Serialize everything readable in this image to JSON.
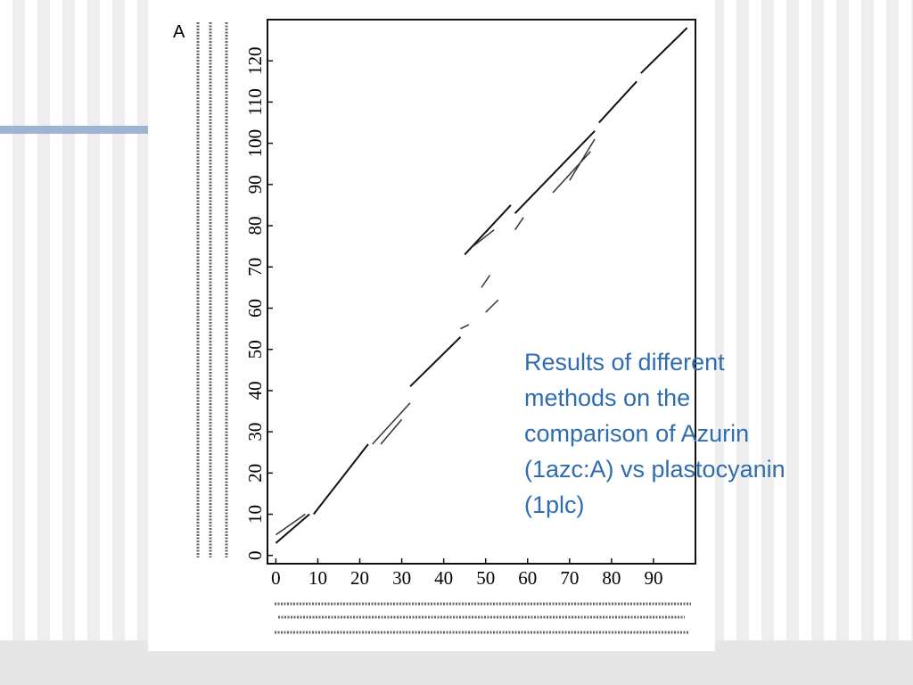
{
  "slide": {
    "caption_lines": [
      "Results of different",
      "methods on the",
      "comparison of Azurin",
      "(1azc:A) vs plastocyanin",
      "(1plc)"
    ]
  },
  "chart_data": {
    "type": "dotplot",
    "panel_label": "A",
    "xlim": [
      -2,
      100
    ],
    "ylim": [
      -2,
      130
    ],
    "xticks": [
      0,
      10,
      20,
      30,
      40,
      50,
      60,
      70,
      80,
      90
    ],
    "yticks": [
      0,
      10,
      20,
      30,
      40,
      50,
      60,
      70,
      80,
      90,
      100,
      110,
      120
    ],
    "series": [
      {
        "color": "#111111",
        "width": 2,
        "x": [
          0,
          8,
          null,
          9,
          22,
          null,
          32,
          44,
          null,
          45,
          56,
          null,
          57,
          76,
          null,
          77,
          86,
          null,
          87,
          98
        ],
        "values": [
          3,
          10,
          null,
          10,
          27,
          null,
          41,
          53,
          null,
          73,
          85,
          null,
          83,
          103,
          null,
          105,
          115,
          null,
          117,
          128
        ]
      },
      {
        "color": "#333333",
        "width": 1.5,
        "x": [
          0,
          7,
          null,
          23,
          32,
          null,
          25,
          30,
          null,
          44,
          46,
          null,
          47,
          52,
          null,
          49,
          51,
          null,
          50,
          53,
          null,
          57,
          59,
          null,
          66,
          75,
          null,
          70,
          76
        ],
        "values": [
          5,
          10,
          null,
          27,
          37,
          null,
          27,
          33,
          null,
          55,
          56,
          null,
          75,
          79,
          null,
          65,
          68,
          null,
          59,
          62,
          null,
          79,
          82,
          null,
          88,
          98,
          null,
          91,
          101
        ]
      }
    ]
  }
}
